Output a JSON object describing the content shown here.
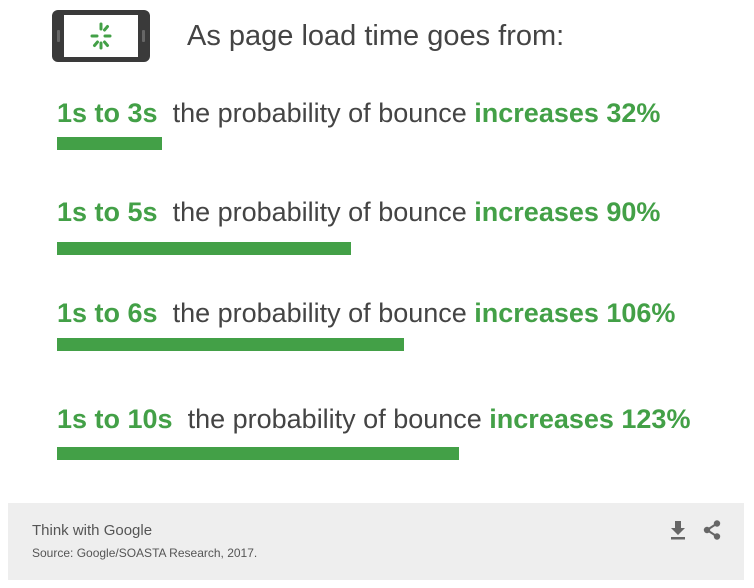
{
  "header": {
    "icon": "phone-loading-icon",
    "title": "As page load time goes from:"
  },
  "chart_data": {
    "type": "bar",
    "orientation": "horizontal",
    "title": "As page load time goes from:",
    "categories": [
      "1s to 3s",
      "1s to 5s",
      "1s to 6s",
      "1s to 10s"
    ],
    "values": [
      32,
      90,
      106,
      123
    ],
    "unit": "%",
    "phrase": "the probability of bounce",
    "verb": "increases",
    "bar_color": "#43a047",
    "grid": false
  },
  "footer": {
    "brand": "Think with Google",
    "source": "Source: Google/SOASTA Research, 2017.",
    "icons": [
      "download-icon",
      "share-icon"
    ]
  }
}
